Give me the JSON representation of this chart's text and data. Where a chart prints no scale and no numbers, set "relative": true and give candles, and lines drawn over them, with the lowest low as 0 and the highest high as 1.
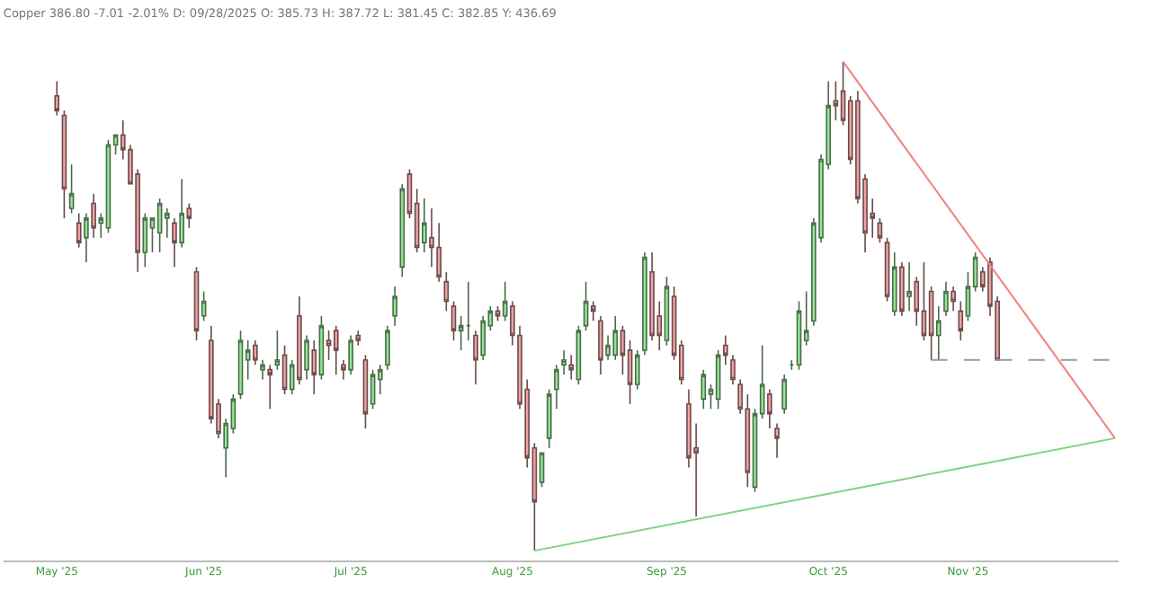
{
  "chart_data": {
    "type": "candlestick",
    "title": "Copper 386.80 -7.01 -2.01% D: 09/28/2025 O: 385.73 H: 387.72 L: 381.45 C: 382.85 Y: 436.69",
    "relative": true,
    "categories": [
      "May '25",
      null,
      null,
      null,
      null,
      null,
      null,
      null,
      null,
      null,
      null,
      null,
      null,
      null,
      null,
      null,
      null,
      null,
      null,
      null,
      "Jun '25",
      null,
      null,
      null,
      null,
      null,
      null,
      null,
      null,
      null,
      null,
      null,
      null,
      null,
      null,
      null,
      null,
      null,
      null,
      null,
      "Jul '25",
      null,
      null,
      null,
      null,
      null,
      null,
      null,
      null,
      null,
      null,
      null,
      null,
      null,
      null,
      null,
      null,
      null,
      null,
      null,
      null,
      null,
      "Aug '25",
      null,
      null,
      null,
      null,
      null,
      null,
      null,
      null,
      null,
      null,
      null,
      null,
      null,
      null,
      null,
      null,
      null,
      null,
      null,
      null,
      "Sep '25",
      null,
      null,
      null,
      null,
      null,
      null,
      null,
      null,
      null,
      null,
      null,
      null,
      null,
      null,
      null,
      null,
      null,
      null,
      null,
      null,
      null,
      "Oct '25",
      null,
      null,
      null,
      null,
      null,
      null,
      null,
      null,
      null,
      null,
      null,
      null,
      null,
      null,
      null,
      null,
      null,
      null,
      "Nov '25",
      null,
      null,
      null,
      null,
      null,
      null,
      null,
      null,
      null,
      null,
      null,
      null,
      null,
      null,
      null,
      null,
      null,
      null,
      null,
      null
    ],
    "ohlc": [
      [
        0.93,
        0.96,
        0.89,
        0.9
      ],
      [
        0.89,
        0.9,
        0.68,
        0.74
      ],
      [
        0.7,
        0.79,
        0.69,
        0.73
      ],
      [
        0.67,
        0.69,
        0.62,
        0.63
      ],
      [
        0.64,
        0.69,
        0.59,
        0.68
      ],
      [
        0.71,
        0.73,
        0.64,
        0.66
      ],
      [
        0.67,
        0.69,
        0.64,
        0.68
      ],
      [
        0.66,
        0.84,
        0.65,
        0.83
      ],
      [
        0.83,
        0.85,
        0.81,
        0.85
      ],
      [
        0.85,
        0.88,
        0.8,
        0.82
      ],
      [
        0.82,
        0.83,
        0.75,
        0.75
      ],
      [
        0.77,
        0.78,
        0.57,
        0.61
      ],
      [
        0.61,
        0.69,
        0.58,
        0.68
      ],
      [
        0.66,
        0.68,
        0.61,
        0.68
      ],
      [
        0.65,
        0.72,
        0.61,
        0.71
      ],
      [
        0.68,
        0.7,
        0.64,
        0.69
      ],
      [
        0.67,
        0.68,
        0.58,
        0.63
      ],
      [
        0.63,
        0.76,
        0.62,
        0.69
      ],
      [
        0.7,
        0.71,
        0.66,
        0.68
      ],
      [
        0.57,
        0.58,
        0.43,
        0.45
      ],
      [
        0.48,
        0.53,
        0.47,
        0.51
      ],
      [
        0.43,
        0.46,
        0.26,
        0.27
      ],
      [
        0.3,
        0.31,
        0.23,
        0.24
      ],
      [
        0.21,
        0.27,
        0.15,
        0.26
      ],
      [
        0.25,
        0.32,
        0.24,
        0.31
      ],
      [
        0.32,
        0.45,
        0.31,
        0.43
      ],
      [
        0.39,
        0.43,
        0.35,
        0.41
      ],
      [
        0.42,
        0.43,
        0.38,
        0.39
      ],
      [
        0.37,
        0.39,
        0.35,
        0.38
      ],
      [
        0.37,
        0.38,
        0.29,
        0.36
      ],
      [
        0.38,
        0.45,
        0.37,
        0.39
      ],
      [
        0.4,
        0.42,
        0.32,
        0.33
      ],
      [
        0.33,
        0.39,
        0.32,
        0.38
      ],
      [
        0.48,
        0.52,
        0.34,
        0.35
      ],
      [
        0.37,
        0.44,
        0.35,
        0.43
      ],
      [
        0.41,
        0.43,
        0.32,
        0.36
      ],
      [
        0.36,
        0.48,
        0.35,
        0.46
      ],
      [
        0.43,
        0.45,
        0.39,
        0.42
      ],
      [
        0.45,
        0.46,
        0.36,
        0.41
      ],
      [
        0.38,
        0.39,
        0.35,
        0.37
      ],
      [
        0.37,
        0.44,
        0.36,
        0.43
      ],
      [
        0.44,
        0.45,
        0.42,
        0.43
      ],
      [
        0.39,
        0.4,
        0.25,
        0.28
      ],
      [
        0.3,
        0.37,
        0.29,
        0.36
      ],
      [
        0.35,
        0.38,
        0.32,
        0.37
      ],
      [
        0.38,
        0.46,
        0.37,
        0.45
      ],
      [
        0.48,
        0.54,
        0.46,
        0.52
      ],
      [
        0.58,
        0.75,
        0.56,
        0.74
      ],
      [
        0.77,
        0.78,
        0.68,
        0.69
      ],
      [
        0.71,
        0.74,
        0.61,
        0.62
      ],
      [
        0.63,
        0.72,
        0.61,
        0.67
      ],
      [
        0.64,
        0.7,
        0.58,
        0.62
      ],
      [
        0.62,
        0.67,
        0.55,
        0.56
      ],
      [
        0.55,
        0.57,
        0.49,
        0.51
      ],
      [
        0.5,
        0.51,
        0.43,
        0.45
      ],
      [
        0.45,
        0.48,
        0.41,
        0.46
      ],
      [
        0.46,
        0.55,
        0.43,
        0.46
      ],
      [
        0.44,
        0.45,
        0.34,
        0.39
      ],
      [
        0.4,
        0.48,
        0.39,
        0.47
      ],
      [
        0.46,
        0.5,
        0.45,
        0.49
      ],
      [
        0.49,
        0.5,
        0.47,
        0.48
      ],
      [
        0.48,
        0.55,
        0.47,
        0.51
      ],
      [
        0.5,
        0.51,
        0.42,
        0.44
      ],
      [
        0.44,
        0.46,
        0.29,
        0.3
      ],
      [
        0.33,
        0.35,
        0.17,
        0.19
      ],
      [
        0.21,
        0.22,
        0,
        0.1
      ],
      [
        0.14,
        0.2,
        0.13,
        0.2
      ],
      [
        0.23,
        0.33,
        0.21,
        0.32
      ],
      [
        0.33,
        0.38,
        0.29,
        0.37
      ],
      [
        0.38,
        0.41,
        0.36,
        0.39
      ],
      [
        0.38,
        0.4,
        0.35,
        0.37
      ],
      [
        0.35,
        0.46,
        0.34,
        0.45
      ],
      [
        0.46,
        0.55,
        0.45,
        0.51
      ],
      [
        0.5,
        0.51,
        0.47,
        0.49
      ],
      [
        0.47,
        0.48,
        0.36,
        0.39
      ],
      [
        0.4,
        0.44,
        0.39,
        0.42
      ],
      [
        0.4,
        0.48,
        0.39,
        0.45
      ],
      [
        0.45,
        0.46,
        0.36,
        0.4
      ],
      [
        0.41,
        0.43,
        0.3,
        0.34
      ],
      [
        0.34,
        0.41,
        0.33,
        0.4
      ],
      [
        0.41,
        0.61,
        0.4,
        0.6
      ],
      [
        0.57,
        0.61,
        0.43,
        0.44
      ],
      [
        0.48,
        0.51,
        0.41,
        0.44
      ],
      [
        0.43,
        0.56,
        0.42,
        0.54
      ],
      [
        0.52,
        0.54,
        0.39,
        0.4
      ],
      [
        0.42,
        0.43,
        0.34,
        0.35
      ],
      [
        0.3,
        0.33,
        0.17,
        0.19
      ],
      [
        0.21,
        0.26,
        0.07,
        0.2
      ],
      [
        0.31,
        0.37,
        0.29,
        0.36
      ],
      [
        0.32,
        0.34,
        0.29,
        0.33
      ],
      [
        0.31,
        0.41,
        0.29,
        0.4
      ],
      [
        0.42,
        0.44,
        0.38,
        0.4
      ],
      [
        0.39,
        0.4,
        0.34,
        0.35
      ],
      [
        0.34,
        0.35,
        0.28,
        0.29
      ],
      [
        0.29,
        0.32,
        0.13,
        0.16
      ],
      [
        0.13,
        0.29,
        0.12,
        0.28
      ],
      [
        0.28,
        0.42,
        0.27,
        0.34
      ],
      [
        0.32,
        0.33,
        0.25,
        0.28
      ],
      [
        0.25,
        0.26,
        0.19,
        0.23
      ],
      [
        0.29,
        0.36,
        0.28,
        0.35
      ],
      [
        0.38,
        0.39,
        0.37,
        0.38
      ],
      [
        0.38,
        0.51,
        0.37,
        0.49
      ],
      [
        0.43,
        0.53,
        0.42,
        0.45
      ],
      [
        0.47,
        0.68,
        0.46,
        0.67
      ],
      [
        0.64,
        0.81,
        0.63,
        0.8
      ],
      [
        0.79,
        0.96,
        0.78,
        0.91
      ],
      [
        0.92,
        0.96,
        0.88,
        0.91
      ],
      [
        0.94,
        1,
        0.87,
        0.88
      ],
      [
        0.92,
        0.93,
        0.79,
        0.8
      ],
      [
        0.92,
        0.94,
        0.71,
        0.72
      ],
      [
        0.76,
        0.77,
        0.61,
        0.65
      ],
      [
        0.69,
        0.72,
        0.64,
        0.68
      ],
      [
        0.67,
        0.68,
        0.63,
        0.64
      ],
      [
        0.63,
        0.64,
        0.51,
        0.52
      ],
      [
        0.49,
        0.61,
        0.48,
        0.58
      ],
      [
        0.58,
        0.59,
        0.48,
        0.49
      ],
      [
        0.52,
        0.59,
        0.49,
        0.53
      ],
      [
        0.55,
        0.56,
        0.46,
        0.49
      ],
      [
        0.49,
        0.59,
        0.43,
        0.44
      ],
      [
        0.53,
        0.54,
        0.39,
        0.44
      ],
      [
        0.44,
        0.5,
        0.39,
        0.47
      ],
      [
        0.49,
        0.55,
        0.48,
        0.53
      ],
      [
        0.53,
        0.54,
        0.49,
        0.51
      ],
      [
        0.49,
        0.51,
        0.43,
        0.45
      ],
      [
        0.48,
        0.57,
        0.47,
        0.54
      ],
      [
        0.54,
        0.61,
        0.53,
        0.6
      ],
      [
        0.57,
        0.58,
        0.53,
        0.54
      ],
      [
        0.59,
        0.6,
        0.48,
        0.5
      ],
      [
        0.51,
        0.52,
        0.39,
        0.39
      ],
      null,
      null,
      null,
      null,
      null,
      null,
      null,
      null,
      null,
      null,
      null,
      null,
      null,
      null,
      null,
      null
    ],
    "series": [
      {
        "type": "line",
        "color": "#f08080",
        "values": [
          null,
          null,
          null,
          null,
          null,
          null,
          null,
          null,
          null,
          null,
          null,
          null,
          null,
          null,
          null,
          null,
          null,
          null,
          null,
          null,
          null,
          null,
          null,
          null,
          null,
          null,
          null,
          null,
          null,
          null,
          null,
          null,
          null,
          null,
          null,
          null,
          null,
          null,
          null,
          null,
          null,
          null,
          null,
          null,
          null,
          null,
          null,
          null,
          null,
          null,
          null,
          null,
          null,
          null,
          null,
          null,
          null,
          null,
          null,
          null,
          null,
          null,
          null,
          null,
          null,
          null,
          null,
          null,
          null,
          null,
          null,
          null,
          null,
          null,
          null,
          null,
          null,
          null,
          null,
          null,
          null,
          null,
          null,
          null,
          null,
          null,
          null,
          null,
          null,
          null,
          null,
          null,
          null,
          null,
          null,
          null,
          null,
          null,
          null,
          null,
          null,
          null,
          null,
          null,
          null,
          null,
          null,
          1,
          null,
          null,
          null,
          null,
          null,
          null,
          null,
          null,
          null,
          null,
          null,
          null,
          null,
          null,
          null,
          null,
          null,
          null,
          null,
          null,
          null,
          null,
          null,
          null,
          null,
          null,
          null,
          null,
          null,
          null,
          null,
          null,
          null,
          null,
          null,
          null,
          0.23
        ]
      },
      {
        "type": "line",
        "color": "#7ed37e",
        "values": [
          null,
          null,
          null,
          null,
          null,
          null,
          null,
          null,
          null,
          null,
          null,
          null,
          null,
          null,
          null,
          null,
          null,
          null,
          null,
          null,
          null,
          null,
          null,
          null,
          null,
          null,
          null,
          null,
          null,
          null,
          null,
          null,
          null,
          null,
          null,
          null,
          null,
          null,
          null,
          null,
          null,
          null,
          null,
          null,
          null,
          null,
          null,
          null,
          null,
          null,
          null,
          null,
          null,
          null,
          null,
          null,
          null,
          null,
          null,
          null,
          null,
          null,
          null,
          null,
          null,
          0,
          null,
          null,
          null,
          null,
          null,
          null,
          null,
          null,
          null,
          null,
          null,
          null,
          null,
          null,
          null,
          null,
          null,
          null,
          null,
          null,
          null,
          null,
          null,
          null,
          null,
          null,
          null,
          null,
          null,
          null,
          null,
          null,
          null,
          null,
          null,
          null,
          null,
          null,
          null,
          null,
          null,
          null,
          null,
          null,
          null,
          null,
          null,
          null,
          null,
          null,
          null,
          null,
          null,
          null,
          null,
          null,
          null,
          null,
          null,
          null,
          null,
          null,
          null,
          null,
          null,
          null,
          null,
          null,
          null,
          null,
          null,
          null,
          null,
          null,
          null,
          null,
          null,
          null,
          0.23
        ]
      },
      {
        "type": "line",
        "color": "#999999",
        "line_style": "dashed",
        "values": [
          null,
          null,
          null,
          null,
          null,
          null,
          null,
          null,
          null,
          null,
          null,
          null,
          null,
          null,
          null,
          null,
          null,
          null,
          null,
          null,
          null,
          null,
          null,
          null,
          null,
          null,
          null,
          null,
          null,
          null,
          null,
          null,
          null,
          null,
          null,
          null,
          null,
          null,
          null,
          null,
          null,
          null,
          null,
          null,
          null,
          null,
          null,
          null,
          null,
          null,
          null,
          null,
          null,
          null,
          null,
          null,
          null,
          null,
          null,
          null,
          null,
          null,
          null,
          null,
          null,
          null,
          null,
          null,
          null,
          null,
          null,
          null,
          null,
          null,
          null,
          null,
          null,
          null,
          null,
          null,
          null,
          null,
          null,
          null,
          null,
          null,
          null,
          null,
          null,
          null,
          null,
          null,
          null,
          null,
          null,
          null,
          null,
          null,
          null,
          null,
          null,
          null,
          null,
          null,
          null,
          null,
          null,
          null,
          null,
          null,
          null,
          null,
          null,
          null,
          null,
          null,
          null,
          null,
          null,
          0.39,
          null,
          null,
          null,
          null,
          null,
          null,
          null,
          null,
          null,
          null,
          null,
          null,
          null,
          null,
          null,
          null,
          null,
          null,
          null,
          null,
          null,
          null,
          null,
          null,
          0.39
        ]
      }
    ],
    "grid": false
  }
}
